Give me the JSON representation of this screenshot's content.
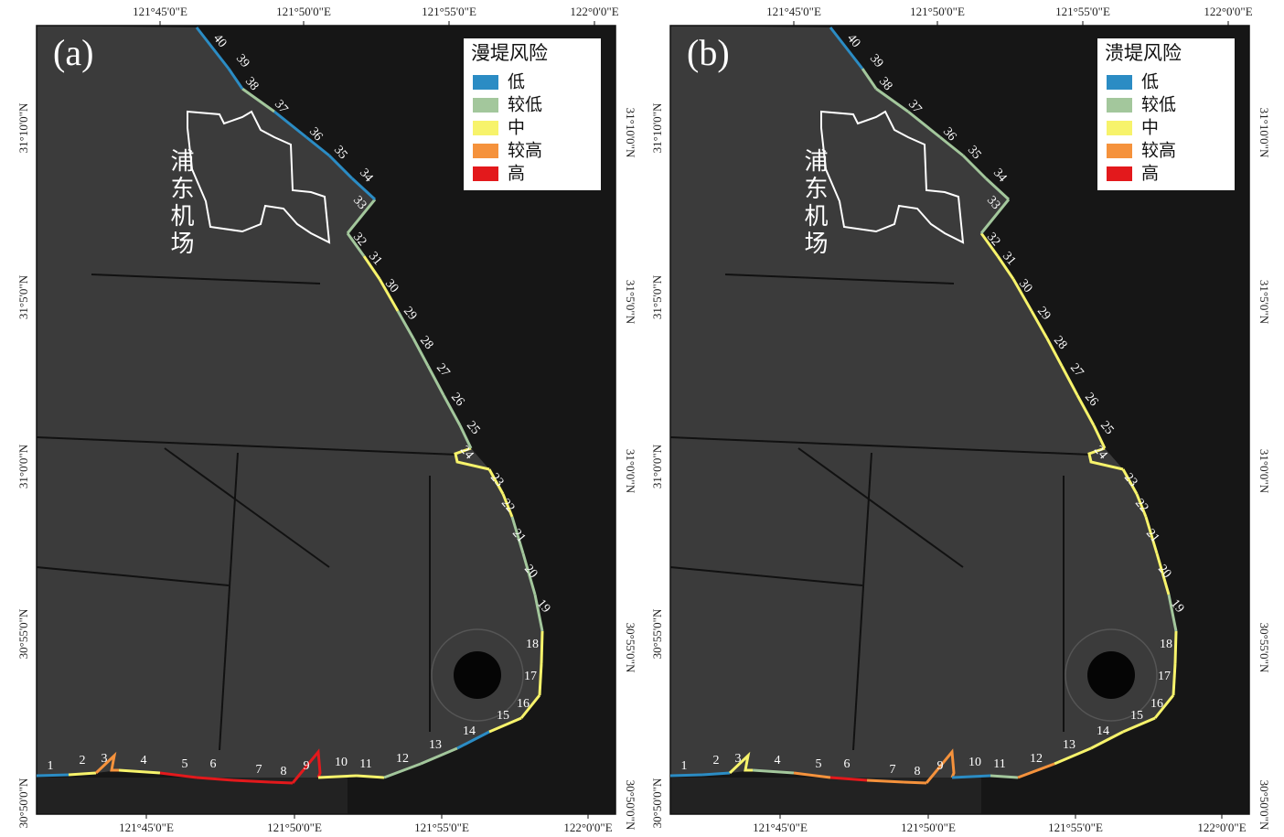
{
  "panels": [
    {
      "label": "(a)",
      "legend": {
        "title": "漫堤风险",
        "items": [
          {
            "name": "低",
            "color": "#2b8cc4"
          },
          {
            "name": "较低",
            "color": "#a3c79c"
          },
          {
            "name": "中",
            "color": "#f7f36b"
          },
          {
            "name": "较高",
            "color": "#f5923c"
          },
          {
            "name": "高",
            "color": "#e3191c"
          }
        ]
      },
      "airport_label": "浦东机场",
      "top_ticks": [
        "121°45'0\"E",
        "121°50'0\"E",
        "121°55'0\"E",
        "122°0'0\"E"
      ],
      "bottom_ticks": [
        "121°45'0\"E",
        "121°50'0\"E",
        "121°55'0\"E",
        "122°0'0\"E"
      ],
      "left_ticks": [
        "31°10'0\"N",
        "31°5'0\"N",
        "31°0'0\"N",
        "30°55'0\"N",
        "30°50'0\"N"
      ],
      "right_ticks": [
        "31°10'0\"N",
        "31°5'0\"N",
        "31°0'0\"N",
        "30°55'0\"N",
        "30°50'0\"N"
      ],
      "segments": [
        {
          "label": "1",
          "color": "#2b8cc4"
        },
        {
          "label": "2",
          "color": "#f7f36b"
        },
        {
          "label": "3",
          "color": "#f5923c"
        },
        {
          "label": "4",
          "color": "#f7f36b"
        },
        {
          "label": "5",
          "color": "#e3191c"
        },
        {
          "label": "6",
          "color": "#e3191c"
        },
        {
          "label": "7",
          "color": "#e3191c"
        },
        {
          "label": "8",
          "color": "#e3191c"
        },
        {
          "label": "9",
          "color": "#e3191c"
        },
        {
          "label": "10",
          "color": "#f7f36b"
        },
        {
          "label": "11",
          "color": "#f7f36b"
        },
        {
          "label": "12",
          "color": "#a3c79c"
        },
        {
          "label": "13",
          "color": "#a3c79c"
        },
        {
          "label": "14",
          "color": "#2b8cc4"
        },
        {
          "label": "15",
          "color": "#f7f36b"
        },
        {
          "label": "16",
          "color": "#f7f36b"
        },
        {
          "label": "17",
          "color": "#f7f36b"
        },
        {
          "label": "18",
          "color": "#f7f36b"
        },
        {
          "label": "19",
          "color": "#a3c79c"
        },
        {
          "label": "20",
          "color": "#a3c79c"
        },
        {
          "label": "21",
          "color": "#a3c79c"
        },
        {
          "label": "22",
          "color": "#f7f36b"
        },
        {
          "label": "23",
          "color": "#f7f36b"
        },
        {
          "label": "24",
          "color": "#f7f36b"
        },
        {
          "label": "25",
          "color": "#a3c79c"
        },
        {
          "label": "26",
          "color": "#a3c79c"
        },
        {
          "label": "27",
          "color": "#a3c79c"
        },
        {
          "label": "28",
          "color": "#a3c79c"
        },
        {
          "label": "29",
          "color": "#a3c79c"
        },
        {
          "label": "30",
          "color": "#f7f36b"
        },
        {
          "label": "31",
          "color": "#f7f36b"
        },
        {
          "label": "32",
          "color": "#a3c79c"
        },
        {
          "label": "33",
          "color": "#a3c79c"
        },
        {
          "label": "34",
          "color": "#2b8cc4"
        },
        {
          "label": "35",
          "color": "#2b8cc4"
        },
        {
          "label": "36",
          "color": "#2b8cc4"
        },
        {
          "label": "37",
          "color": "#2b8cc4"
        },
        {
          "label": "38",
          "color": "#a3c79c"
        },
        {
          "label": "39",
          "color": "#2b8cc4"
        },
        {
          "label": "40",
          "color": "#2b8cc4"
        }
      ]
    },
    {
      "label": "(b)",
      "legend": {
        "title": "溃堤风险",
        "items": [
          {
            "name": "低",
            "color": "#2b8cc4"
          },
          {
            "name": "较低",
            "color": "#a3c79c"
          },
          {
            "name": "中",
            "color": "#f7f36b"
          },
          {
            "name": "较高",
            "color": "#f5923c"
          },
          {
            "name": "高",
            "color": "#e3191c"
          }
        ]
      },
      "airport_label": "浦东机场",
      "top_ticks": [
        "121°45'0\"E",
        "121°50'0\"E",
        "121°55'0\"E",
        "122°0'0\"E"
      ],
      "bottom_ticks": [
        "121°45'0\"E",
        "121°50'0\"E",
        "121°55'0\"E",
        "122°0'0\"E"
      ],
      "left_ticks": [
        "31°10'0\"N",
        "31°5'0\"N",
        "31°0'0\"N",
        "30°55'0\"N",
        "30°50'0\"N"
      ],
      "right_ticks": [
        "31°10'0\"N",
        "31°5'0\"N",
        "31°0'0\"N",
        "30°55'0\"N",
        "30°50'0\"N"
      ],
      "segments": [
        {
          "label": "1",
          "color": "#2b8cc4"
        },
        {
          "label": "2",
          "color": "#2b8cc4"
        },
        {
          "label": "3",
          "color": "#f7f36b"
        },
        {
          "label": "4",
          "color": "#a3c79c"
        },
        {
          "label": "5",
          "color": "#f5923c"
        },
        {
          "label": "6",
          "color": "#e3191c"
        },
        {
          "label": "7",
          "color": "#f5923c"
        },
        {
          "label": "8",
          "color": "#f5923c"
        },
        {
          "label": "9",
          "color": "#f5923c"
        },
        {
          "label": "10",
          "color": "#2b8cc4"
        },
        {
          "label": "11",
          "color": "#a3c79c"
        },
        {
          "label": "12",
          "color": "#f5923c"
        },
        {
          "label": "13",
          "color": "#f7f36b"
        },
        {
          "label": "14",
          "color": "#f7f36b"
        },
        {
          "label": "15",
          "color": "#f7f36b"
        },
        {
          "label": "16",
          "color": "#f7f36b"
        },
        {
          "label": "17",
          "color": "#f7f36b"
        },
        {
          "label": "18",
          "color": "#f7f36b"
        },
        {
          "label": "19",
          "color": "#a3c79c"
        },
        {
          "label": "20",
          "color": "#f7f36b"
        },
        {
          "label": "21",
          "color": "#f7f36b"
        },
        {
          "label": "22",
          "color": "#f7f36b"
        },
        {
          "label": "23",
          "color": "#f7f36b"
        },
        {
          "label": "24",
          "color": "#f7f36b"
        },
        {
          "label": "25",
          "color": "#f7f36b"
        },
        {
          "label": "26",
          "color": "#f7f36b"
        },
        {
          "label": "27",
          "color": "#f7f36b"
        },
        {
          "label": "28",
          "color": "#f7f36b"
        },
        {
          "label": "29",
          "color": "#f7f36b"
        },
        {
          "label": "30",
          "color": "#f7f36b"
        },
        {
          "label": "31",
          "color": "#f7f36b"
        },
        {
          "label": "32",
          "color": "#f7f36b"
        },
        {
          "label": "33",
          "color": "#a3c79c"
        },
        {
          "label": "34",
          "color": "#a3c79c"
        },
        {
          "label": "35",
          "color": "#a3c79c"
        },
        {
          "label": "36",
          "color": "#a3c79c"
        },
        {
          "label": "37",
          "color": "#a3c79c"
        },
        {
          "label": "38",
          "color": "#a3c79c"
        },
        {
          "label": "39",
          "color": "#a3c79c"
        },
        {
          "label": "40",
          "color": "#2b8cc4"
        }
      ]
    }
  ]
}
